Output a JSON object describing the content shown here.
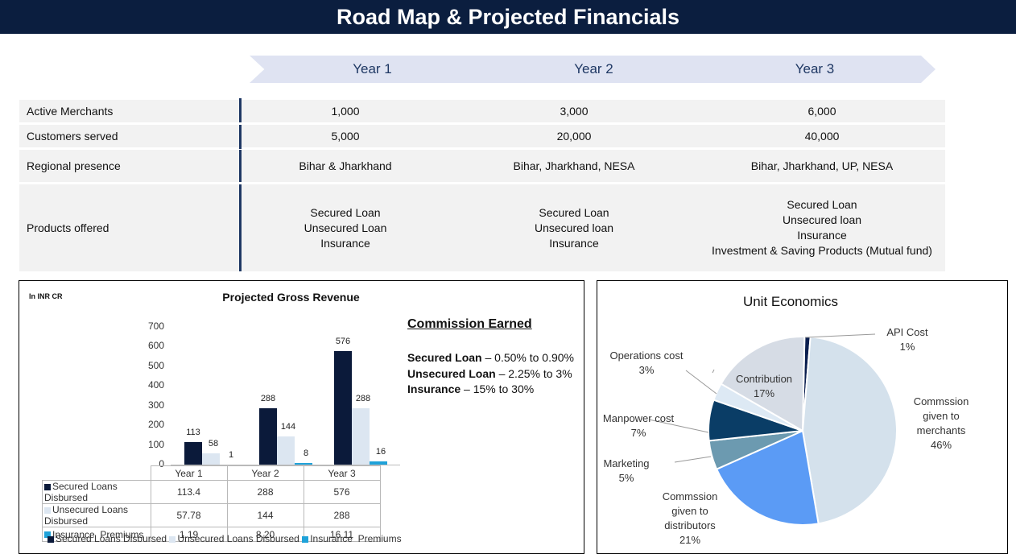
{
  "page_title": "Road Map & Projected Financials",
  "years": [
    "Year 1",
    "Year 2",
    "Year 3"
  ],
  "roadmap": {
    "active_merchants": {
      "label": "Active Merchants",
      "values": [
        "1,000",
        "3,000",
        "6,000"
      ]
    },
    "customers_served": {
      "label": "Customers served",
      "values": [
        "5,000",
        "20,000",
        "40,000"
      ]
    },
    "regional_presence": {
      "label": "Regional presence",
      "values": [
        "Bihar & Jharkhand",
        "Bihar, Jharkhand, NESA",
        "Bihar, Jharkhand, UP, NESA"
      ]
    },
    "products_offered": {
      "label": "Products offered",
      "values": [
        [
          "Secured Loan",
          "Unsecured Loan",
          "Insurance"
        ],
        [
          "Secured Loan",
          "Unsecured loan",
          "Insurance"
        ],
        [
          "Secured Loan",
          "Unsecured loan",
          "Insurance",
          "Investment & Saving Products (Mutual fund)"
        ]
      ]
    }
  },
  "revenue": {
    "unit_note": "In INR CR",
    "commission_title": "Commission Earned",
    "commission_lines": [
      {
        "bold": "Secured Loan",
        "rest": " – 0.50% to 0.90%"
      },
      {
        "bold": "Unsecured Loan",
        "rest": " – 2.25% to 3%"
      },
      {
        "bold": "Insurance",
        "rest": " – 15% to 30%"
      }
    ]
  },
  "chart_data": [
    {
      "type": "bar",
      "title": "Projected Gross Revenue",
      "categories": [
        "Year 1",
        "Year 2",
        "Year 3"
      ],
      "ylim": [
        0,
        700
      ],
      "yticks": [
        "700",
        "600",
        "500",
        "400",
        "300",
        "200",
        "100",
        "0"
      ],
      "series": [
        {
          "name": "Secured Loans Disbursed",
          "values": [
            113.4,
            288,
            576
          ],
          "labels": [
            "113",
            "288",
            "576"
          ],
          "table": [
            "113.4",
            "288",
            "576"
          ],
          "color": "#0b1a3a"
        },
        {
          "name": "Unsecured Loans Disbursed",
          "values": [
            57.78,
            144,
            288
          ],
          "labels": [
            "58",
            "144",
            "288"
          ],
          "table": [
            "57.78",
            "144",
            "288"
          ],
          "color": "#dce6f1"
        },
        {
          "name": "Insurance  Premiums",
          "values": [
            1.19,
            8.2,
            16.11
          ],
          "labels": [
            "1",
            "8",
            "16"
          ],
          "table": [
            "1.19",
            "8.20",
            "16.11"
          ],
          "color": "#1fa2d9"
        }
      ],
      "grid": false,
      "legend": "bottom"
    },
    {
      "type": "pie",
      "title": "Unit Economics",
      "slices": [
        {
          "name": "API Cost",
          "value": 1,
          "pct": "1%",
          "color": "#0b1f4f"
        },
        {
          "name": "Commssion given to merchants",
          "value": 46,
          "pct": "46%",
          "color": "#d4e1ec"
        },
        {
          "name": "Commssion given to distributors",
          "value": 21,
          "pct": "21%",
          "color": "#5b9bf5"
        },
        {
          "name": "Marketing",
          "value": 5,
          "pct": "5%",
          "color": "#6c9ab0"
        },
        {
          "name": "Manpower cost",
          "value": 7,
          "pct": "7%",
          "color": "#0a3d66"
        },
        {
          "name": "Operations cost",
          "value": 3,
          "pct": "3%",
          "color": "#dde9f4"
        },
        {
          "name": "Contribution",
          "value": 17,
          "pct": "17%",
          "color": "#d6dce5"
        }
      ]
    }
  ]
}
